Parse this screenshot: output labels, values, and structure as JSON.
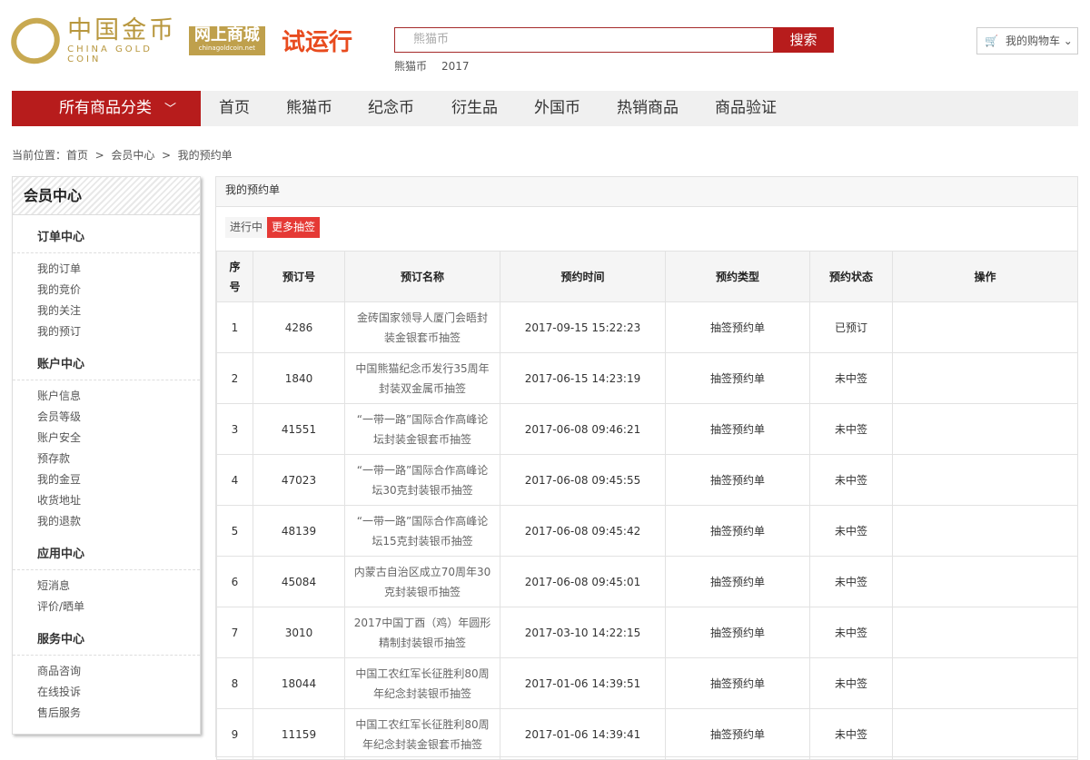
{
  "header": {
    "logo_cn": "中国金币",
    "logo_en": "CHINA GOLD COIN",
    "shop_cn": "网上商城",
    "shop_url": "chinagoldcoin.net",
    "trial": "试运行",
    "search_placeholder": "熊猫币",
    "search_button": "搜索",
    "hot_keywords": [
      "熊猫币",
      "2017"
    ],
    "cart": "我的购物车"
  },
  "nav": {
    "all_categories": "所有商品分类",
    "items": [
      "首页",
      "熊猫币",
      "纪念币",
      "衍生品",
      "外国币",
      "热销商品",
      "商品验证"
    ]
  },
  "breadcrumb": {
    "prefix": "当前位置：",
    "items": [
      "首页",
      "会员中心",
      "我的预约单"
    ]
  },
  "sidebar": {
    "title": "会员中心",
    "groups": [
      {
        "title": "订单中心",
        "items": [
          "我的订单",
          "我的竞价",
          "我的关注",
          "我的预订"
        ]
      },
      {
        "title": "账户中心",
        "items": [
          "账户信息",
          "会员等级",
          "账户安全",
          "预存款",
          "我的金豆",
          "收货地址",
          "我的退款"
        ]
      },
      {
        "title": "应用中心",
        "items": [
          "短消息",
          "评价/晒单"
        ]
      },
      {
        "title": "服务中心",
        "items": [
          "商品咨询",
          "在线投诉",
          "售后服务"
        ]
      }
    ]
  },
  "main": {
    "title": "我的预约单",
    "tabs": [
      "进行中",
      "更多抽签"
    ],
    "columns": [
      "序号",
      "预订号",
      "预订名称",
      "预约时间",
      "预约类型",
      "预约状态",
      "操作"
    ],
    "rows": [
      [
        "1",
        "4286",
        "金砖国家领导人厦门会晤封装金银套币抽签",
        "2017-09-15 15:22:23",
        "抽签预约单",
        "已预订",
        ""
      ],
      [
        "2",
        "1840",
        "中国熊猫纪念币发行35周年封装双金属币抽签",
        "2017-06-15 14:23:19",
        "抽签预约单",
        "未中签",
        ""
      ],
      [
        "3",
        "41551",
        "“一带一路”国际合作高峰论坛封装金银套币抽签",
        "2017-06-08 09:46:21",
        "抽签预约单",
        "未中签",
        ""
      ],
      [
        "4",
        "47023",
        "“一带一路”国际合作高峰论坛30克封装银币抽签",
        "2017-06-08 09:45:55",
        "抽签预约单",
        "未中签",
        ""
      ],
      [
        "5",
        "48139",
        "“一带一路”国际合作高峰论坛15克封装银币抽签",
        "2017-06-08 09:45:42",
        "抽签预约单",
        "未中签",
        ""
      ],
      [
        "6",
        "45084",
        "内蒙古自治区成立70周年30克封装银币抽签",
        "2017-06-08 09:45:01",
        "抽签预约单",
        "未中签",
        ""
      ],
      [
        "7",
        "3010",
        "2017中国丁酉（鸡）年圆形精制封装银币抽签",
        "2017-03-10 14:22:15",
        "抽签预约单",
        "未中签",
        ""
      ],
      [
        "8",
        "18044",
        "中国工农红军长征胜利80周年纪念封装银币抽签",
        "2017-01-06 14:39:51",
        "抽签预约单",
        "未中签",
        ""
      ],
      [
        "9",
        "11159",
        "中国工农红军长征胜利80周年纪念封装金银套币抽签",
        "2017-01-06 14:39:41",
        "抽签预约单",
        "未中签",
        ""
      ]
    ]
  },
  "colors": {
    "brand_red": "#b71c1c",
    "gold": "#bfa04c",
    "tab_active": "#e53935"
  }
}
